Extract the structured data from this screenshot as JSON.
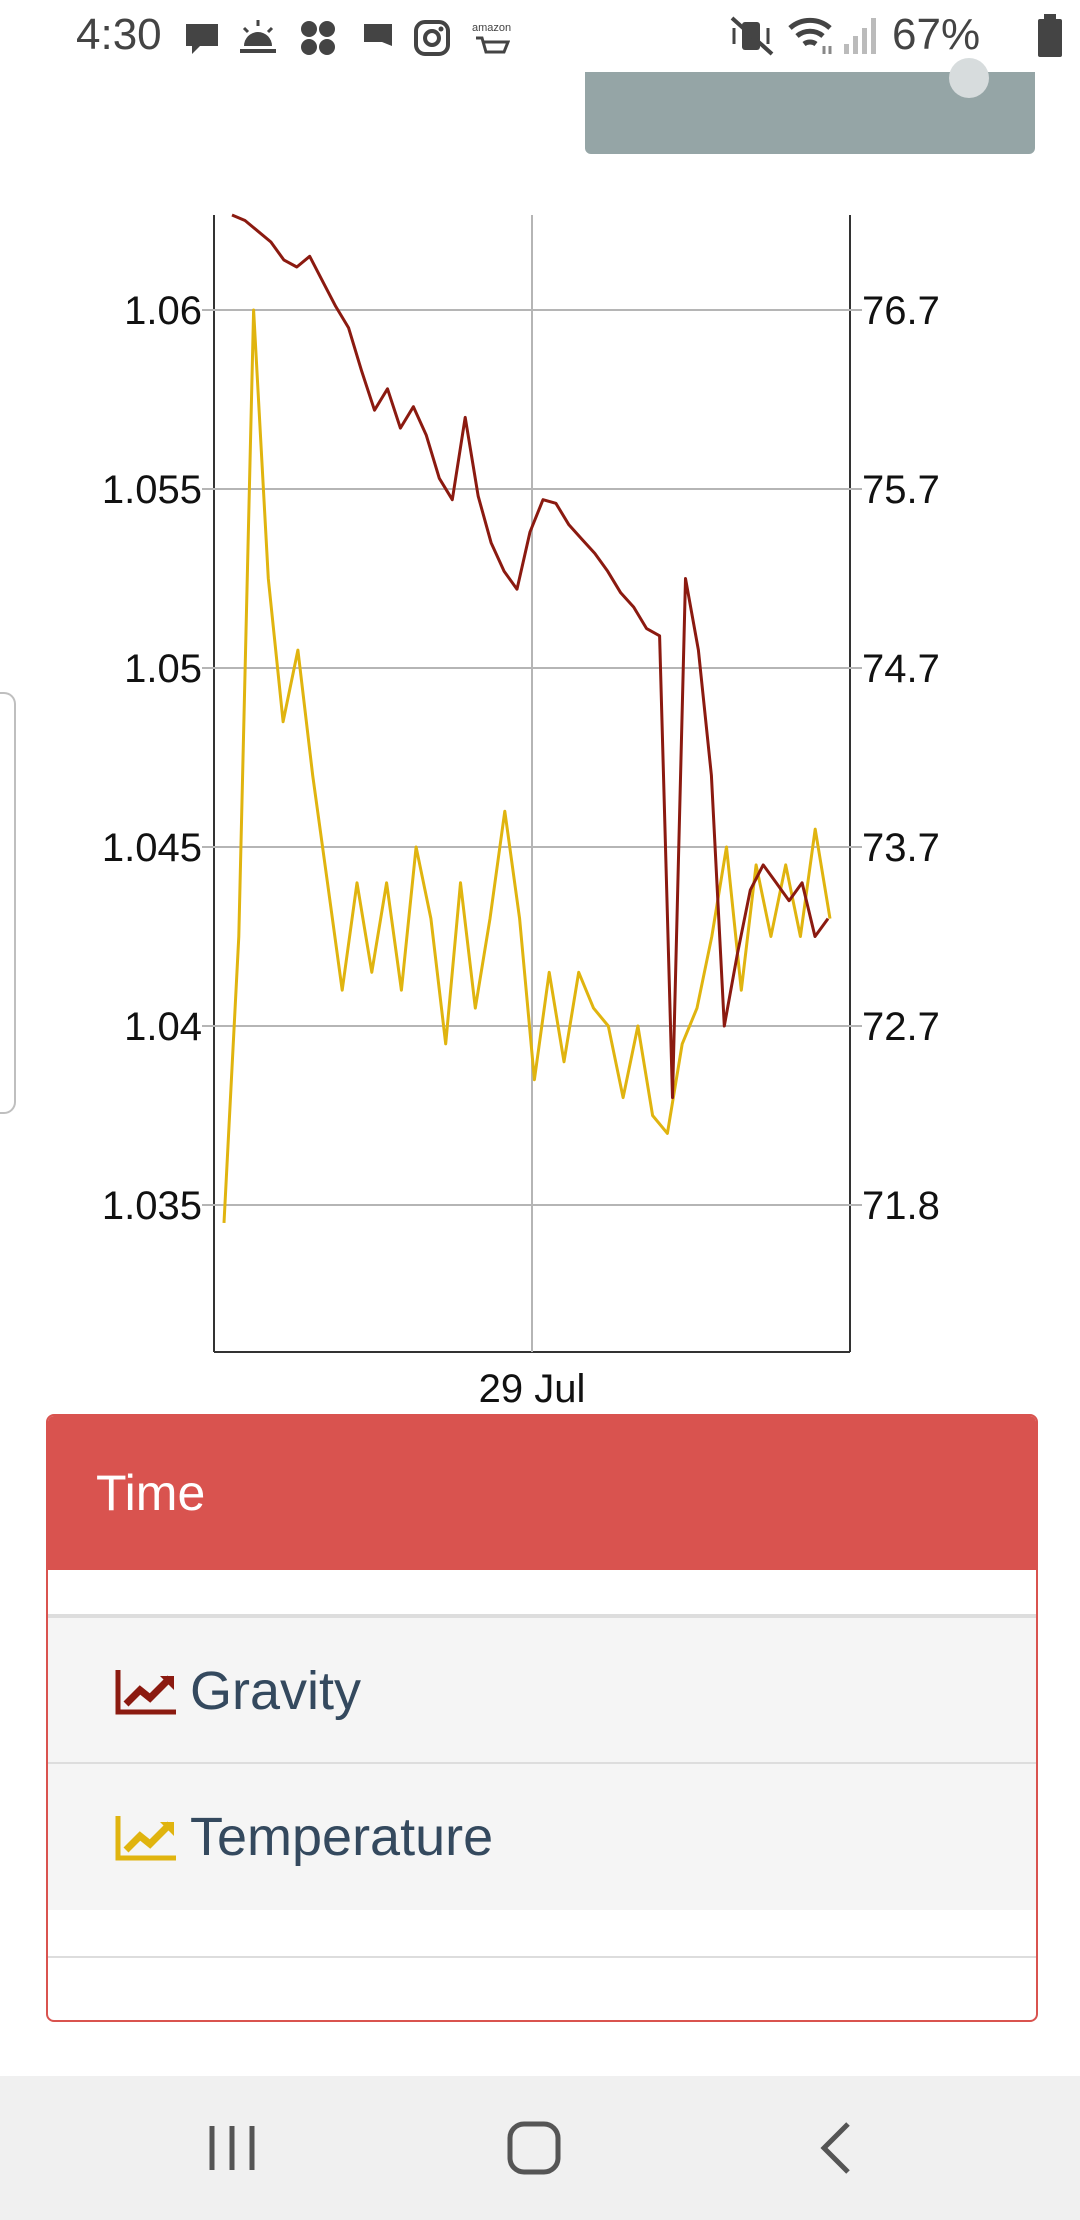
{
  "status_bar": {
    "time": "4:30",
    "battery": "67%",
    "amazon_label": "amazon",
    "icons_left": [
      "message-icon",
      "weather-sunrise-icon",
      "app-icon",
      "flag-icon",
      "instagram-icon",
      "amazon-cart-icon"
    ],
    "icons_right": [
      "mute-vibrate-icon",
      "wifi-icon",
      "signal-icon",
      "battery-icon"
    ]
  },
  "legend": {
    "title": "Time",
    "items": [
      {
        "label": "Gravity",
        "color": "#8b1a10",
        "icon": "line-chart-icon"
      },
      {
        "label": "Temperature",
        "color": "#e0b40f",
        "icon": "line-chart-icon"
      }
    ]
  },
  "chart_data": {
    "type": "line",
    "xlabel": "",
    "x_tick_labels": [
      "29 Jul"
    ],
    "y_left_ticks": [
      "1.06",
      "1.055",
      "1.05",
      "1.045",
      "1.04",
      "1.035"
    ],
    "y_right_ticks": [
      "76.7",
      "75.7",
      "74.7",
      "73.7",
      "72.7",
      "71.8"
    ],
    "grid": true,
    "series": [
      {
        "name": "Gravity",
        "axis": "left",
        "color": "#8b1a10",
        "values": [
          1.0628,
          1.0625,
          1.0622,
          1.0619,
          1.0614,
          1.0612,
          1.0615,
          1.0608,
          1.0601,
          1.0595,
          1.0583,
          1.0572,
          1.0578,
          1.0567,
          1.0573,
          1.0565,
          1.0553,
          1.0547,
          1.057,
          1.0548,
          1.0535,
          1.0527,
          1.0522,
          1.0538,
          1.0547,
          1.0546,
          1.054,
          1.0536,
          1.0532,
          1.0527,
          1.0521,
          1.0517,
          1.0511,
          1.0509,
          1.038,
          1.0525,
          1.0505,
          1.047,
          1.04,
          1.042,
          1.0438,
          1.0445,
          1.044,
          1.0435,
          1.044,
          1.0425,
          1.043
        ]
      },
      {
        "name": "Temperature",
        "axis": "right",
        "color": "#e0b40f",
        "values": [
          71.6,
          73.2,
          76.7,
          75.2,
          74.4,
          74.8,
          74.1,
          73.5,
          72.9,
          73.5,
          73.0,
          73.5,
          72.9,
          73.7,
          73.3,
          72.6,
          73.5,
          72.8,
          73.3,
          73.9,
          73.3,
          72.4,
          73.0,
          72.5,
          73.0,
          72.8,
          72.7,
          72.3,
          72.7,
          72.2,
          72.1,
          72.6,
          72.8,
          73.2,
          73.7,
          72.9,
          73.6,
          73.2,
          73.6,
          73.2,
          73.8,
          73.3
        ]
      }
    ]
  }
}
